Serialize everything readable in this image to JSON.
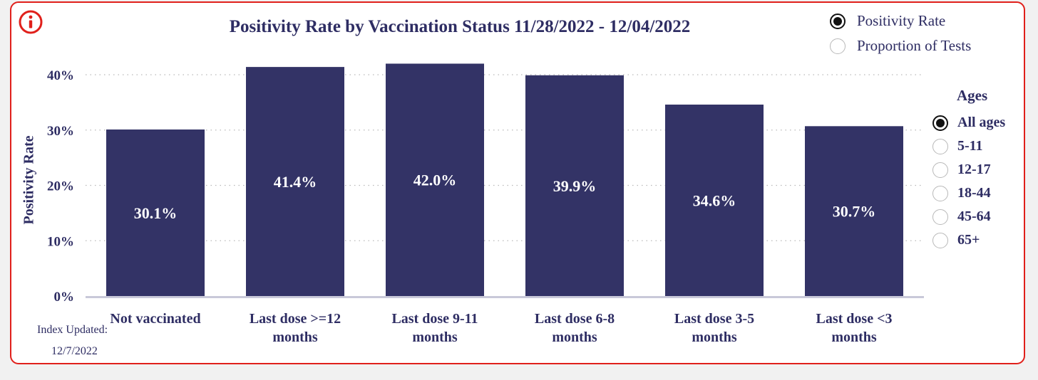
{
  "chart_data": {
    "type": "bar",
    "title": "Positivity Rate by Vaccination Status 11/28/2022 - 12/04/2022",
    "ylabel": "Positivity Rate",
    "xlabel": "",
    "ylim": [
      0,
      43
    ],
    "yticks": [
      0,
      10,
      20,
      30,
      40
    ],
    "ytick_labels": [
      "0%",
      "10%",
      "20%",
      "30%",
      "40%"
    ],
    "grid": true,
    "categories": [
      [
        "Not vaccinated"
      ],
      [
        "Last dose >=12",
        "months"
      ],
      [
        "Last dose 9-11",
        "months"
      ],
      [
        "Last dose 6-8",
        "months"
      ],
      [
        "Last dose 3-5",
        "months"
      ],
      [
        "Last dose <3",
        "months"
      ]
    ],
    "values": [
      30.1,
      41.4,
      42.0,
      39.9,
      34.6,
      30.7
    ],
    "value_labels": [
      "30.1%",
      "41.4%",
      "42.0%",
      "39.9%",
      "34.6%",
      "30.7%"
    ],
    "bar_color": "#333366",
    "label_color": "#ffffff"
  },
  "measure_toggle": {
    "options": [
      "Positivity Rate",
      "Proportion of Tests"
    ],
    "selected": "Positivity Rate"
  },
  "ages_filter": {
    "title": "Ages",
    "options": [
      "All ages",
      "5-11",
      "12-17",
      "18-44",
      "45-64",
      "65+"
    ],
    "selected": "All ages"
  },
  "footer": {
    "index_label": "Index Updated:",
    "index_date": "12/7/2022"
  },
  "icons": {
    "info": "info-icon"
  },
  "colors": {
    "frame_border": "#e0201b",
    "text": "#2e2d63",
    "bar": "#333366"
  }
}
